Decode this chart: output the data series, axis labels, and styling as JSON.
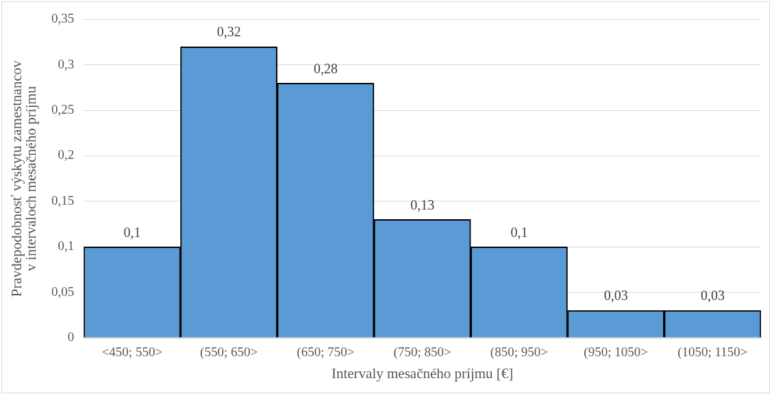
{
  "chart_data": {
    "type": "bar",
    "xlabel": "Intervaly mesačného príjmu [€]",
    "ylabel": "Pravdepodobnosť výskytu zamestnancov\nv intervaloch mesačného príjmu",
    "categories": [
      "<450; 550>",
      "(550; 650>",
      "(650; 750>",
      "(750; 850>",
      "(850; 950>",
      "(950; 1050>",
      "(1050; 1150>"
    ],
    "values": [
      0.1,
      0.32,
      0.28,
      0.13,
      0.1,
      0.03,
      0.03
    ],
    "value_labels": [
      "0,1",
      "0,32",
      "0,28",
      "0,13",
      "0,1",
      "0,03",
      "0,03"
    ],
    "color": "#5b9bd5",
    "ylim": [
      0,
      0.35
    ],
    "yticks": [
      0,
      {
        "value": 0.05,
        "label": "0,05"
      },
      {
        "value": 0.1,
        "label": "0,1"
      },
      {
        "value": 0.15,
        "label": "0,15"
      },
      {
        "value": 0.2,
        "label": "0,2"
      },
      {
        "value": 0.25,
        "label": "0,25"
      },
      {
        "value": 0.3,
        "label": "0,3"
      },
      {
        "value": 0.35,
        "label": "0,35"
      }
    ],
    "grid": "y",
    "legend": false
  }
}
